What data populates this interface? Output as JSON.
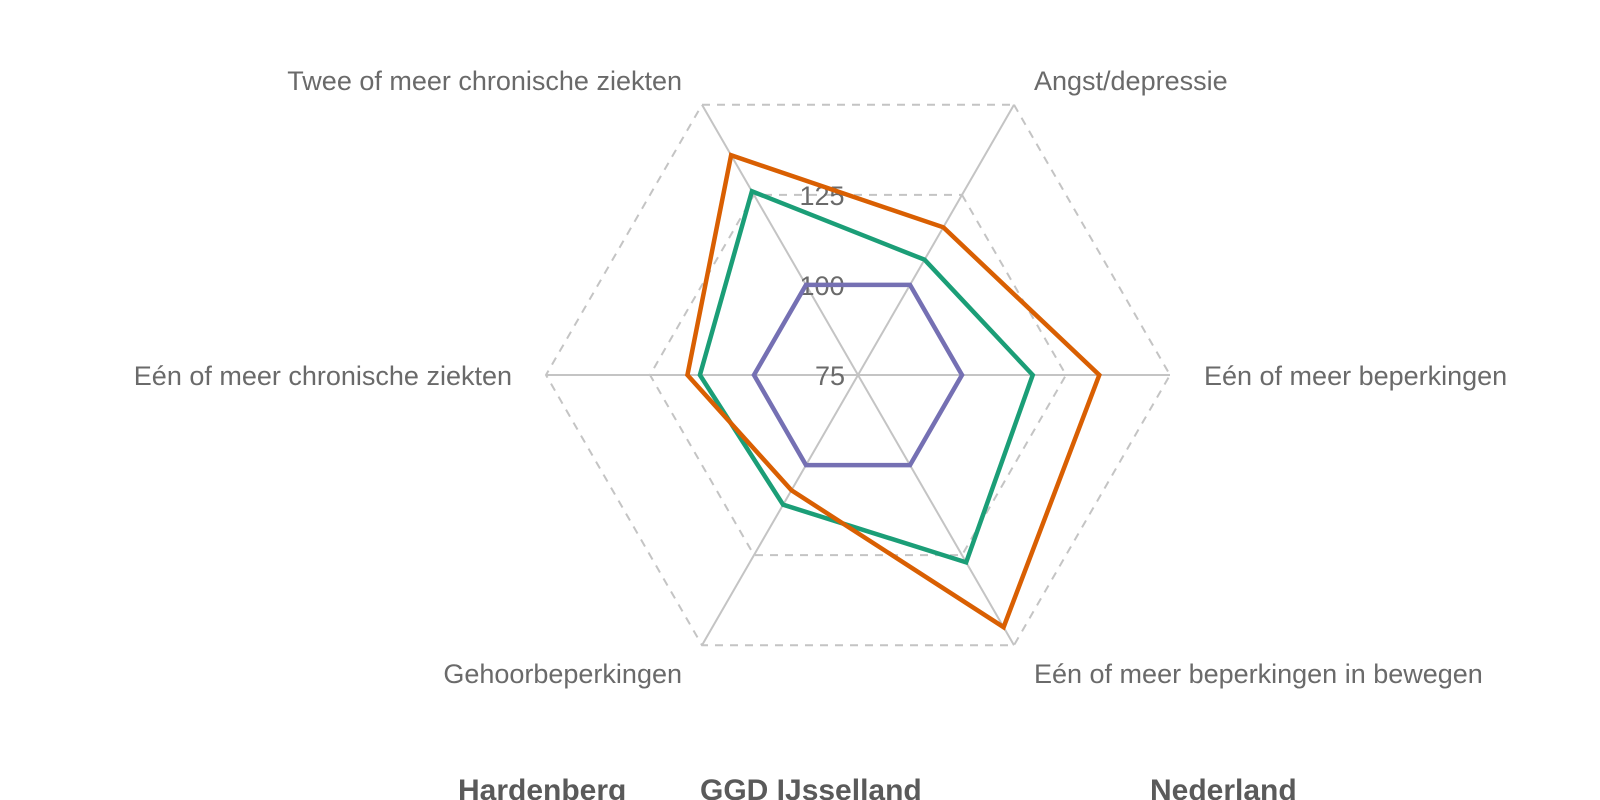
{
  "chart_data": {
    "type": "radar",
    "axes": [
      "Angst/depressie",
      "Eén of meer beperkingen",
      "Eén of meer beperkingen in bewegen",
      "Gehoorbeperkingen",
      "Eén of meer chronische ziekten",
      "Twee of meer chronische ziekten"
    ],
    "r_range": [
      75,
      150
    ],
    "ticks": [
      75,
      100,
      125
    ],
    "series": [
      {
        "name": "Hardenberg",
        "color": "#7570b3",
        "values": [
          100,
          100,
          100,
          100,
          100,
          100
        ]
      },
      {
        "name": "GGD IJsselland",
        "color": "#1b9e77",
        "values": [
          107,
          117,
          127,
          111,
          113,
          126
        ]
      },
      {
        "name": "Nederland",
        "color": "#d95f02",
        "values": [
          116,
          133,
          145,
          107,
          116,
          136
        ]
      }
    ],
    "legend": [
      "Hardenberg",
      "GGD IJsselland",
      "Nederland"
    ],
    "legend_position": "bottom",
    "grid": true
  }
}
